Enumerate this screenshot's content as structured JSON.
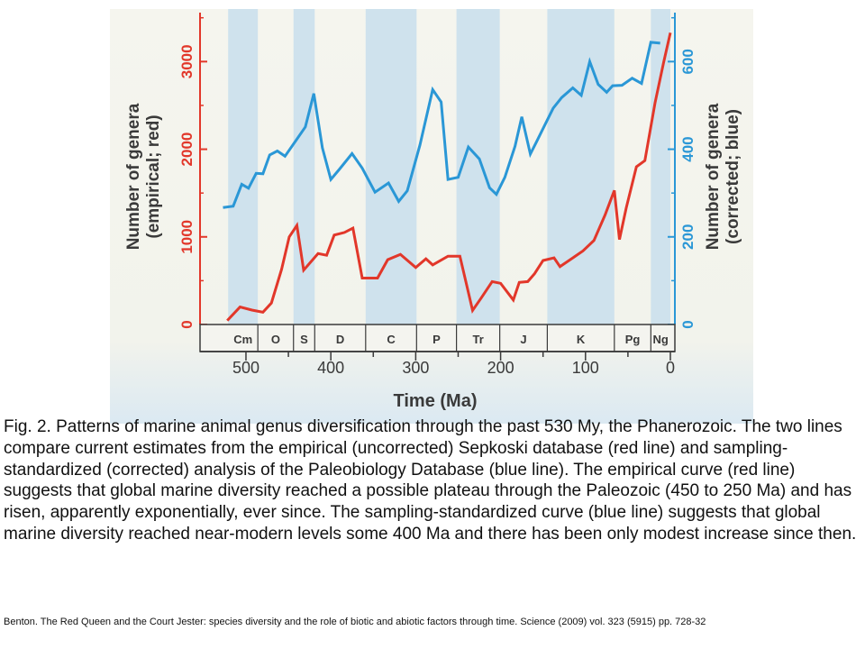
{
  "chart_data": {
    "type": "line",
    "xlabel": "Time (Ma)",
    "ylabel_left": "Number of genera\n(empirical; red)",
    "ylabel_right": "Number of genera\n(corrected; blue)",
    "xlim": [
      535,
      0
    ],
    "x_ticks": [
      500,
      400,
      300,
      200,
      100,
      0
    ],
    "ylim_left": [
      0,
      3600
    ],
    "y_ticks_left": [
      0,
      1000,
      2000,
      3000
    ],
    "ylim_right": [
      0,
      720
    ],
    "y_ticks_right": [
      0,
      200,
      400,
      600
    ],
    "grid": false,
    "periods": [
      {
        "label": "Cm",
        "start": 521,
        "end": 486,
        "shaded": true
      },
      {
        "label": "O",
        "start": 486,
        "end": 444,
        "shaded": false
      },
      {
        "label": "S",
        "start": 444,
        "end": 419,
        "shaded": true
      },
      {
        "label": "D",
        "start": 419,
        "end": 359,
        "shaded": false
      },
      {
        "label": "C",
        "start": 359,
        "end": 299,
        "shaded": true
      },
      {
        "label": "P",
        "start": 299,
        "end": 252,
        "shaded": false
      },
      {
        "label": "Tr",
        "start": 252,
        "end": 201,
        "shaded": true
      },
      {
        "label": "J",
        "start": 201,
        "end": 145,
        "shaded": false
      },
      {
        "label": "K",
        "start": 145,
        "end": 66,
        "shaded": true
      },
      {
        "label": "Pg",
        "start": 66,
        "end": 23,
        "shaded": false
      },
      {
        "label": "Ng",
        "start": 23,
        "end": 0,
        "shaded": true
      }
    ],
    "series": [
      {
        "color": "#2a97d6",
        "axis": "right",
        "points": [
          [
            527,
            267
          ],
          [
            515,
            270
          ],
          [
            505,
            320
          ],
          [
            497,
            311
          ],
          [
            488,
            345
          ],
          [
            480,
            344
          ],
          [
            472,
            387
          ],
          [
            463,
            396
          ],
          [
            454,
            384
          ],
          [
            440,
            423
          ],
          [
            430,
            451
          ],
          [
            420,
            527
          ],
          [
            410,
            403
          ],
          [
            400,
            331
          ],
          [
            390,
            354
          ],
          [
            375,
            390
          ],
          [
            363,
            357
          ],
          [
            348,
            302
          ],
          [
            332,
            323
          ],
          [
            320,
            281
          ],
          [
            310,
            305
          ],
          [
            295,
            410
          ],
          [
            280,
            536
          ],
          [
            270,
            508
          ],
          [
            262,
            331
          ],
          [
            250,
            336
          ],
          [
            238,
            405
          ],
          [
            225,
            378
          ],
          [
            213,
            312
          ],
          [
            205,
            297
          ],
          [
            195,
            336
          ],
          [
            183,
            407
          ],
          [
            175,
            474
          ],
          [
            165,
            389
          ],
          [
            158,
            416
          ],
          [
            148,
            455
          ],
          [
            138,
            494
          ],
          [
            128,
            518
          ],
          [
            115,
            540
          ],
          [
            105,
            523
          ],
          [
            95,
            600
          ],
          [
            85,
            548
          ],
          [
            75,
            530
          ],
          [
            68,
            545
          ],
          [
            57,
            546
          ],
          [
            45,
            562
          ],
          [
            34,
            550
          ],
          [
            23,
            644
          ],
          [
            12,
            642
          ]
        ]
      },
      {
        "color": "#e2372a",
        "axis": "left",
        "points": [
          [
            522,
            45
          ],
          [
            507,
            200
          ],
          [
            493,
            165
          ],
          [
            480,
            140
          ],
          [
            470,
            245
          ],
          [
            458,
            630
          ],
          [
            449,
            1000
          ],
          [
            440,
            1130
          ],
          [
            432,
            620
          ],
          [
            415,
            810
          ],
          [
            405,
            790
          ],
          [
            396,
            1020
          ],
          [
            384,
            1050
          ],
          [
            374,
            1100
          ],
          [
            363,
            530
          ],
          [
            345,
            530
          ],
          [
            333,
            740
          ],
          [
            318,
            800
          ],
          [
            300,
            650
          ],
          [
            288,
            750
          ],
          [
            280,
            680
          ],
          [
            262,
            780
          ],
          [
            248,
            780
          ],
          [
            233,
            160
          ],
          [
            223,
            300
          ],
          [
            210,
            490
          ],
          [
            200,
            470
          ],
          [
            185,
            280
          ],
          [
            178,
            480
          ],
          [
            168,
            490
          ],
          [
            160,
            580
          ],
          [
            150,
            730
          ],
          [
            137,
            760
          ],
          [
            130,
            660
          ],
          [
            115,
            760
          ],
          [
            103,
            840
          ],
          [
            90,
            960
          ],
          [
            77,
            1250
          ],
          [
            66,
            1530
          ],
          [
            60,
            970
          ],
          [
            52,
            1330
          ],
          [
            40,
            1800
          ],
          [
            30,
            1870
          ],
          [
            18,
            2530
          ],
          [
            8,
            2990
          ],
          [
            0,
            3330
          ]
        ]
      }
    ]
  },
  "caption": "Fig. 2. Patterns of marine animal genus diversification through the past 530 My, the Phanerozoic. The two lines compare current estimates from the empirical (uncorrected) Sepkoski database (red line) and sampling-standardized (corrected) analysis of the Paleobiology Database (blue line). The empirical curve (red line) suggests that global marine diversity reached a possible plateau through the Paleozoic (450 to 250 Ma) and has risen, apparently exponentially, ever since. The sampling-standardized curve (blue line) suggests that global marine diversity reached near-modern levels some 400 Ma and there has been only modest increase since then.",
  "citation": "Benton. The Red Queen and the Court Jester: species diversity and the role of biotic and abiotic factors through time. Science (2009) vol. 323 (5915) pp. 728-32",
  "colors": {
    "left_axis": "#e2372a",
    "right_axis": "#2a97d6",
    "shading": "#cfe2ed",
    "text": "#3a3a3a"
  }
}
